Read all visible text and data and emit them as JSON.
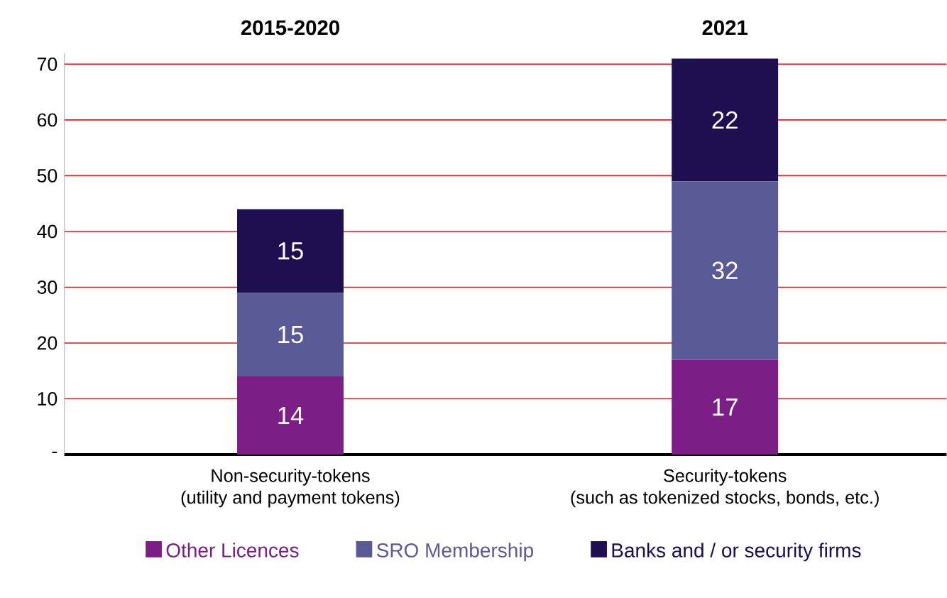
{
  "chart_data": {
    "type": "bar",
    "stacked": true,
    "categories": [
      "Non-security-tokens\n(utility and payment tokens)",
      "Security-tokens\n(such as tokenized stocks, bonds, etc.)"
    ],
    "series": [
      {
        "name": "Other Licences",
        "color": "#7b1f87",
        "values": [
          14,
          17
        ]
      },
      {
        "name": "SRO Membership",
        "color": "#5a5a96",
        "values": [
          15,
          32
        ]
      },
      {
        "name": "Banks and / or security firms",
        "color": "#1e0f50",
        "values": [
          15,
          22
        ]
      }
    ],
    "annotations": [
      "2015-2020",
      "2021"
    ],
    "ylim": [
      0,
      72
    ],
    "yticks": [
      {
        "value": 0,
        "label": "-"
      },
      10,
      20,
      30,
      40,
      50,
      60,
      70
    ],
    "grid": "y",
    "legend": "bottom",
    "data_labels": true
  }
}
